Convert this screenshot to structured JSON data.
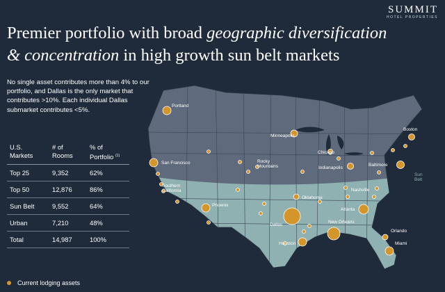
{
  "logo": {
    "name": "SUMMIT",
    "tagline": "HOTEL PROPERTIES"
  },
  "title": {
    "part1": "Premier portfolio with broad ",
    "italic1": "geographic diversification",
    "italic2": "& concentration",
    "part2": " in high growth sun belt markets"
  },
  "intro": "No single asset contributes more than 4% to our portfolio, and Dallas is the only market that contributes >10%. Each individual Dallas submarket contributes <5%.",
  "table": {
    "headers": {
      "markets_line1": "U.S.",
      "markets_line2": "Markets",
      "rooms_line1": "# of",
      "rooms_line2": "Rooms",
      "portfolio_line1": "% of",
      "portfolio_line2": "Portfolio",
      "portfolio_note": "(1)"
    },
    "rows": [
      {
        "market": "Top 25",
        "rooms": "9,352",
        "pct": "62%"
      },
      {
        "market": "Top 50",
        "rooms": "12,876",
        "pct": "86%"
      },
      {
        "market": "Sun Belt",
        "rooms": "9,552",
        "pct": "64%"
      },
      {
        "market": "Urban",
        "rooms": "7,210",
        "pct": "48%"
      },
      {
        "market": "Total",
        "rooms": "14,987",
        "pct": "100%"
      }
    ]
  },
  "map": {
    "cities": [
      "Portland",
      "Minneapolis",
      "Boston",
      "Chicago",
      "San Francisco",
      "Rocky Mountains",
      "Indianapolis",
      "Baltimore",
      "Southern California",
      "Nashville",
      "Oklahoma",
      "Phoenix",
      "Atlanta",
      "Dallas",
      "New Orleans",
      "Orlando",
      "Houston",
      "Miami"
    ],
    "sun_belt_label": "Sun Belt",
    "colors": {
      "land_north": "#5f6b7c",
      "land_sunbelt": "#8fb1b1",
      "asset": "#d4952a"
    }
  },
  "legend": {
    "label": "Current lodging assets"
  }
}
